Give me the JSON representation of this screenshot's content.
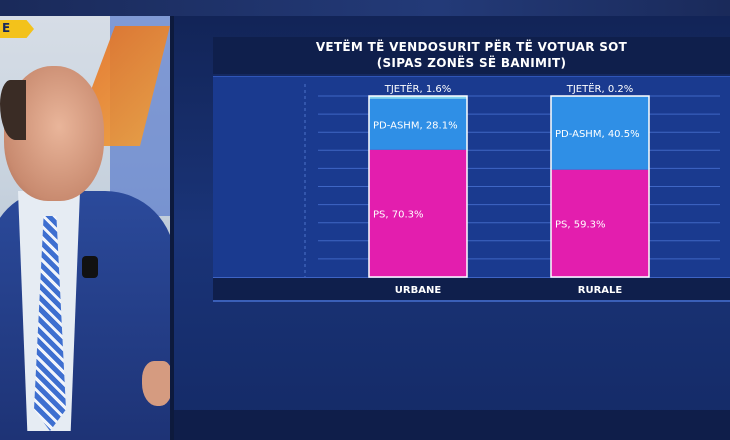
{
  "live_tag": "E",
  "chart_data": {
    "type": "bar",
    "stacked": true,
    "title": "VETËM TË VENDOSURIT PËR TË VOTUAR SOT",
    "subtitle": "(SIPAS ZONËS SË BANIMIT)",
    "categories": [
      "URBANE",
      "RURALE"
    ],
    "series": [
      {
        "name": "PS",
        "values": [
          70.3,
          59.3
        ],
        "labels": [
          "PS, 70.3%",
          "PS, 59.3%"
        ],
        "color": "#e31eae"
      },
      {
        "name": "PD-ASHM",
        "values": [
          28.1,
          40.5
        ],
        "labels": [
          "PD-ASHM, 28.1%",
          "PD-ASHM, 40.5%"
        ],
        "color": "#2f8fe6"
      },
      {
        "name": "TJETËR",
        "values": [
          1.6,
          0.2
        ],
        "labels": [
          "TJETËR, 1.6%",
          "TJETËR, 0.2%"
        ],
        "color": "#7fd4f2"
      }
    ],
    "ylim": [
      0,
      100
    ],
    "grid": true
  },
  "colors": {
    "panel_bg": "#1a3a8f",
    "bar_border": "#ffffff"
  }
}
